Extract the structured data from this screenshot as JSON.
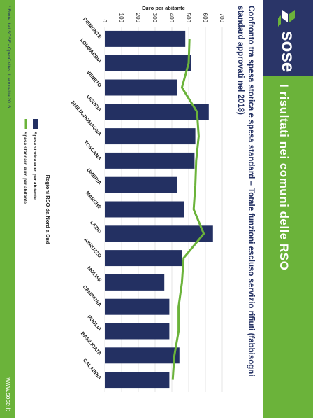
{
  "header": {
    "brand": "sose",
    "title": "I risultati nei comuni delle RSO",
    "subtitle": "Confronto tra spesa storica e spesa standard – Totale funzioni escluso servizio rifiuti (fabbisogni standard approvati nel 2018)"
  },
  "footer": {
    "source": "* Fonte dati SOSE - OpenCivitas. It annualità 2016",
    "url": "www.sose.it"
  },
  "colors": {
    "green": "#6bb33a",
    "navy": "#2a3568",
    "bar": "#233062",
    "line": "#6bb33a"
  },
  "chart_data": {
    "type": "bar",
    "categories": [
      "PIEMONTE",
      "LOMBARDIA",
      "VENETO",
      "LIGURIA",
      "EMILIA-ROMAGNA",
      "TOSCANA",
      "UMBRIA",
      "MARCHE",
      "LAZIO",
      "ABRUZZO",
      "MOLISE",
      "CAMPANIA",
      "PUGLIA",
      "BASILICATA",
      "CALABRIA"
    ],
    "series": [
      {
        "name": "Spesa storica euro per abitante",
        "type": "bar",
        "values": [
          480,
          515,
          430,
          620,
          540,
          535,
          430,
          475,
          645,
          460,
          355,
          385,
          385,
          445,
          385
        ]
      },
      {
        "name": "Spesa standard euro per abitante",
        "type": "line",
        "values": [
          505,
          500,
          460,
          550,
          560,
          545,
          540,
          530,
          590,
          470,
          460,
          440,
          440,
          415,
          405
        ]
      }
    ],
    "xlabel": "Regioni RSO da Nord a Sud",
    "ylabel": "Euro per abitante",
    "yticks": [
      0,
      100,
      200,
      300,
      400,
      500,
      600,
      700
    ],
    "ylim": [
      0,
      700
    ],
    "grid": true,
    "legend_position": "bottom"
  }
}
